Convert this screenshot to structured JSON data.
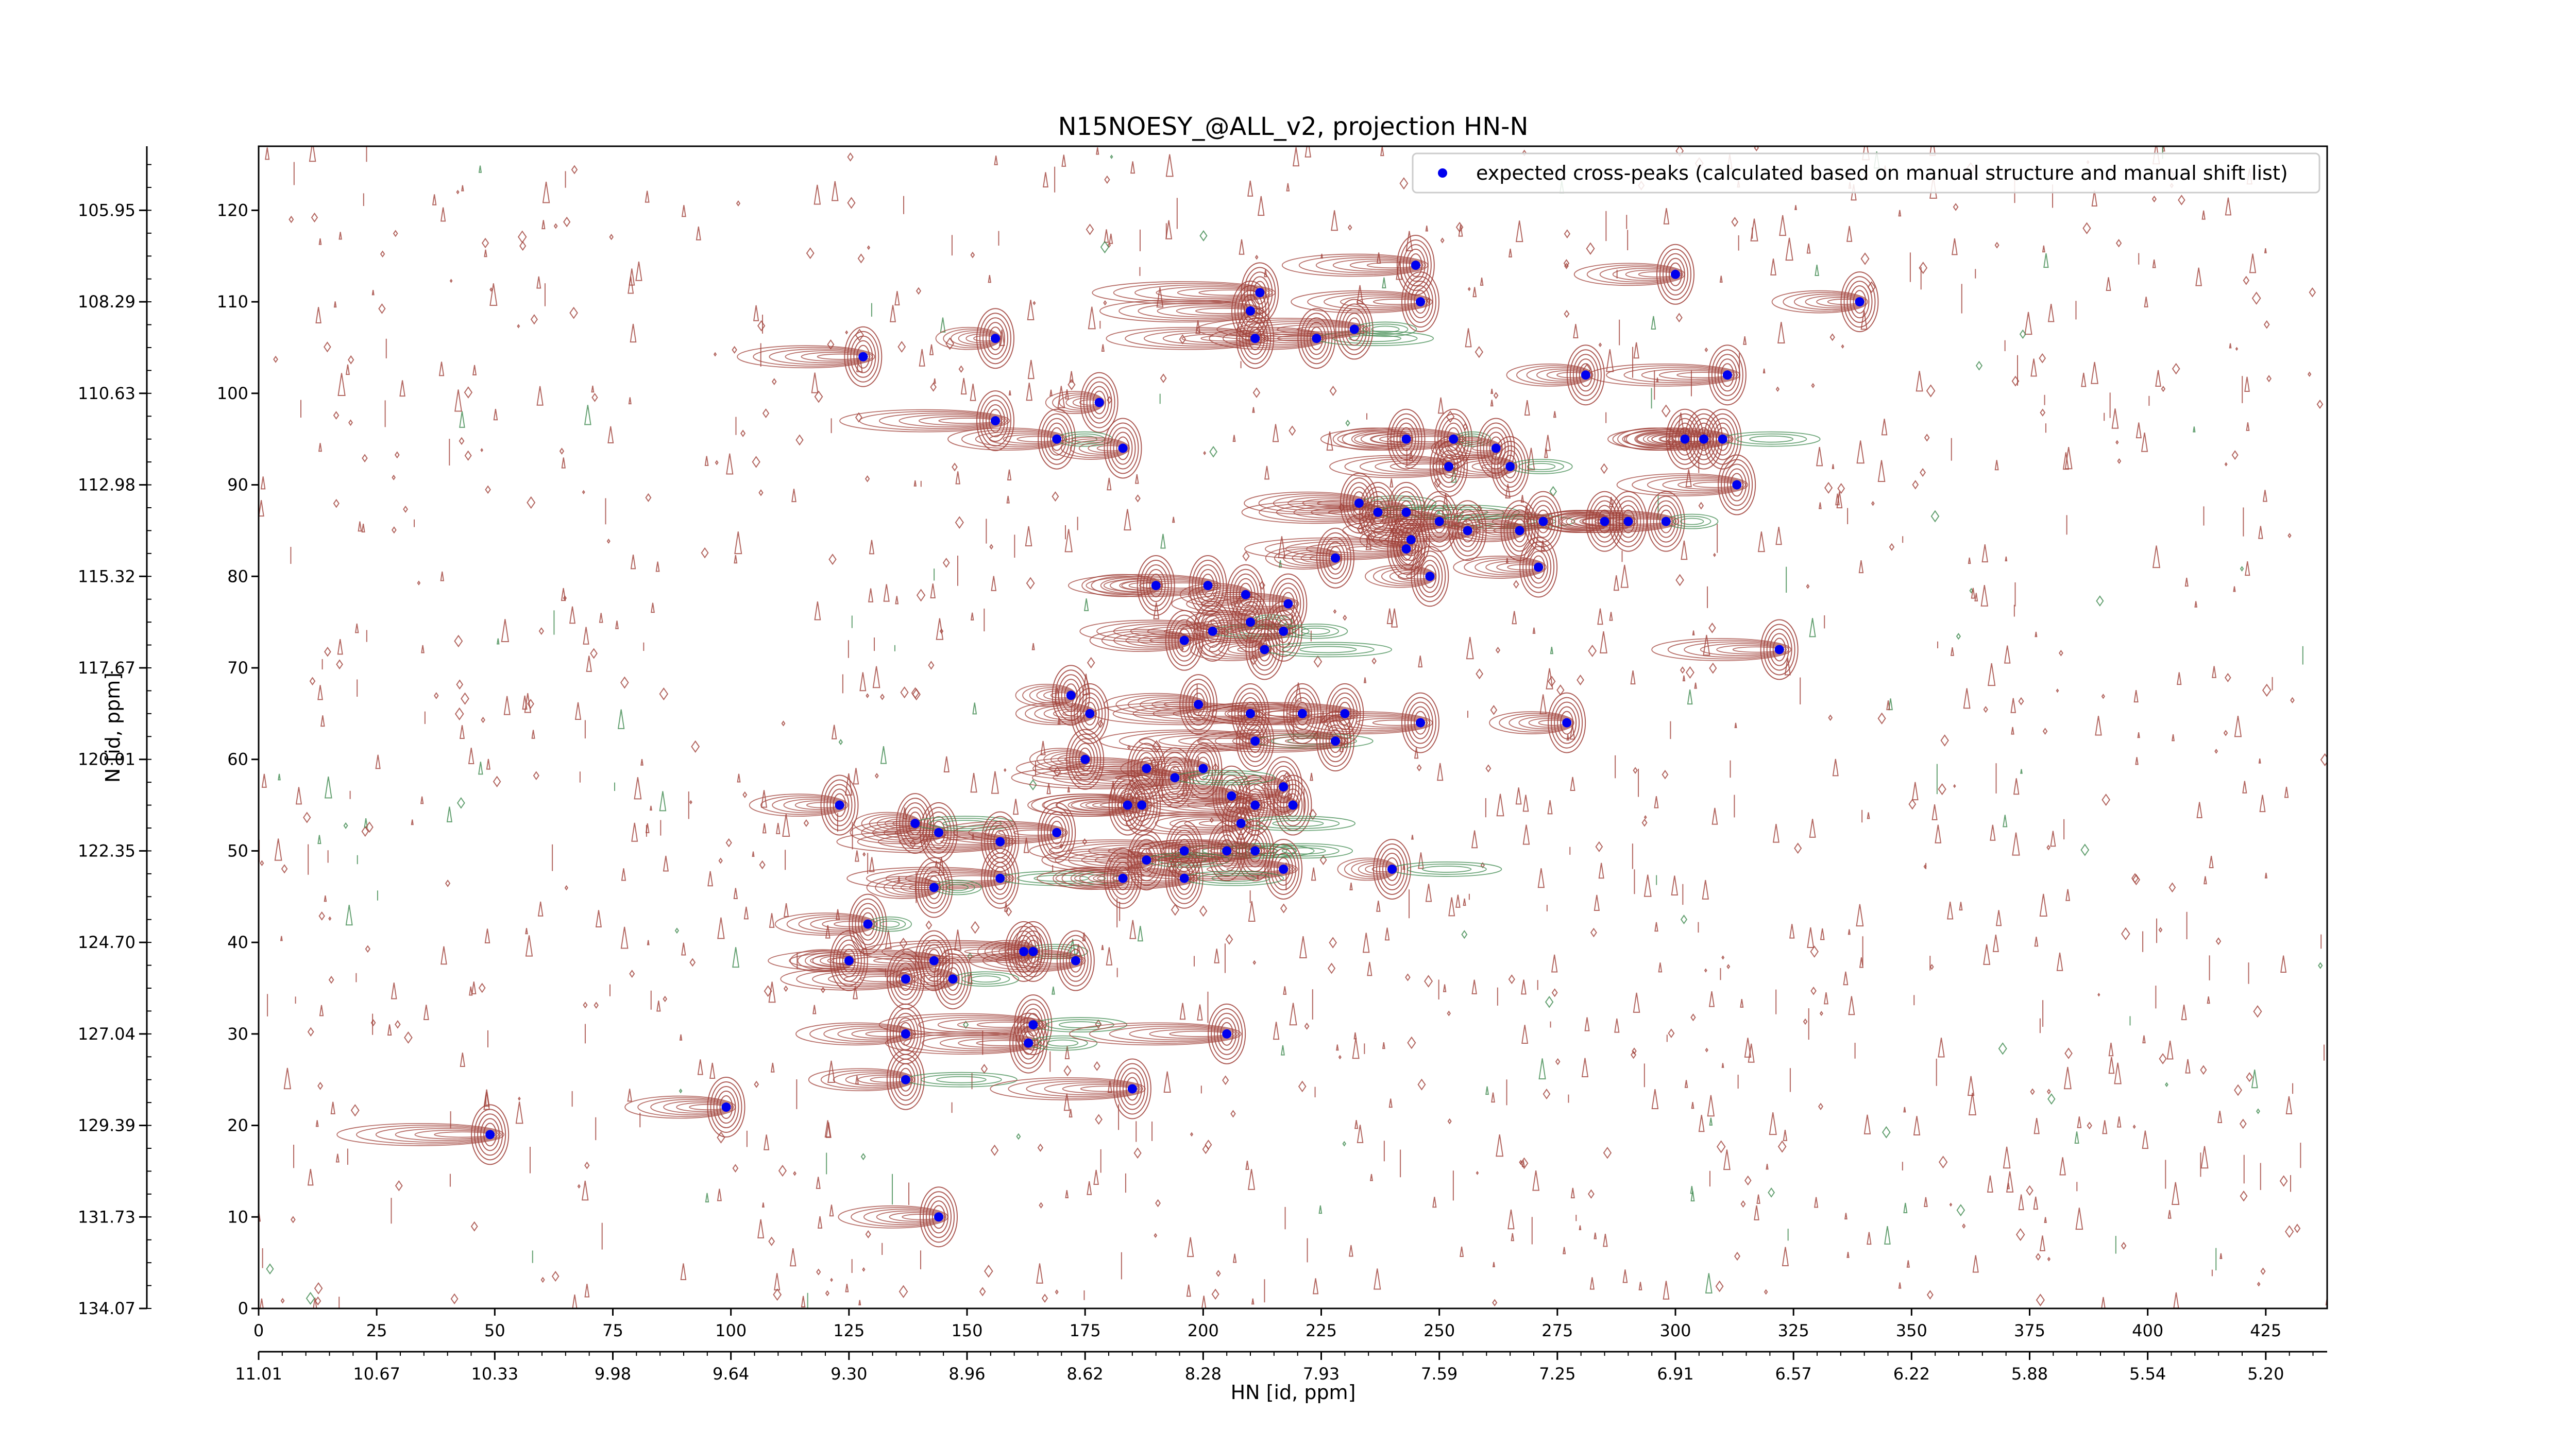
{
  "chart_data": {
    "type": "scatter",
    "title": "N15NOESY_@ALL_v2, projection HN-N",
    "xlabel": "HN [id, ppm]",
    "ylabel": "N [id, ppm]",
    "x_range": [
      0,
      438
    ],
    "y_range": [
      0,
      127
    ],
    "x_ticks_index": [
      "0",
      "25",
      "50",
      "75",
      "100",
      "125",
      "150",
      "175",
      "200",
      "225",
      "250",
      "275",
      "300",
      "325",
      "350",
      "375",
      "400",
      "425"
    ],
    "x_ticks_ppm": [
      "11.01",
      "10.67",
      "10.33",
      "9.98",
      "9.64",
      "9.30",
      "8.96",
      "8.62",
      "8.28",
      "7.93",
      "7.59",
      "7.25",
      "6.91",
      "6.57",
      "6.22",
      "5.88",
      "5.54",
      "5.20"
    ],
    "y_ticks_index": [
      "0",
      "10",
      "20",
      "30",
      "40",
      "50",
      "60",
      "70",
      "80",
      "90",
      "100",
      "110",
      "120"
    ],
    "y_ticks_ppm": [
      "134.07",
      "131.73",
      "129.39",
      "127.04",
      "124.70",
      "122.35",
      "120.01",
      "117.67",
      "115.32",
      "112.98",
      "110.63",
      "108.29",
      "105.95"
    ],
    "legend": {
      "label": "expected cross-peaks (calculated based on manual structure and manual shift list)",
      "position": "top-right"
    },
    "colors": {
      "positive_contour": "#a0413a",
      "negative_contour": "#3f8a4f",
      "marker": "#0000ee"
    },
    "series": [
      {
        "name": "expected cross-peaks (calculated based on manual structure and manual shift list)",
        "points": [
          [
            245,
            114
          ],
          [
            246,
            110
          ],
          [
            300,
            113
          ],
          [
            339,
            110
          ],
          [
            210,
            109
          ],
          [
            212,
            111
          ],
          [
            211,
            106
          ],
          [
            224,
            106
          ],
          [
            232,
            107
          ],
          [
            156,
            106
          ],
          [
            128,
            104
          ],
          [
            281,
            102
          ],
          [
            311,
            102
          ],
          [
            156,
            97
          ],
          [
            178,
            99
          ],
          [
            169,
            95
          ],
          [
            183,
            94
          ],
          [
            243,
            95
          ],
          [
            253,
            95
          ],
          [
            262,
            94
          ],
          [
            265,
            92
          ],
          [
            252,
            92
          ],
          [
            302,
            95
          ],
          [
            306,
            95
          ],
          [
            310,
            95
          ],
          [
            313,
            90
          ],
          [
            233,
            88
          ],
          [
            237,
            87
          ],
          [
            243,
            87
          ],
          [
            250,
            86
          ],
          [
            256,
            85
          ],
          [
            267,
            85
          ],
          [
            272,
            86
          ],
          [
            285,
            86
          ],
          [
            290,
            86
          ],
          [
            298,
            86
          ],
          [
            244,
            84
          ],
          [
            243,
            83
          ],
          [
            228,
            82
          ],
          [
            248,
            80
          ],
          [
            271,
            81
          ],
          [
            190,
            79
          ],
          [
            201,
            79
          ],
          [
            209,
            78
          ],
          [
            218,
            77
          ],
          [
            196,
            73
          ],
          [
            202,
            74
          ],
          [
            210,
            75
          ],
          [
            217,
            74
          ],
          [
            213,
            72
          ],
          [
            322,
            72
          ],
          [
            172,
            67
          ],
          [
            176,
            65
          ],
          [
            199,
            66
          ],
          [
            210,
            65
          ],
          [
            221,
            65
          ],
          [
            230,
            65
          ],
          [
            246,
            64
          ],
          [
            277,
            64
          ],
          [
            211,
            62
          ],
          [
            228,
            62
          ],
          [
            175,
            60
          ],
          [
            188,
            59
          ],
          [
            200,
            59
          ],
          [
            206,
            56
          ],
          [
            217,
            57
          ],
          [
            211,
            55
          ],
          [
            219,
            55
          ],
          [
            184,
            55
          ],
          [
            187,
            55
          ],
          [
            194,
            58
          ],
          [
            208,
            53
          ],
          [
            123,
            55
          ],
          [
            144,
            52
          ],
          [
            139,
            53
          ],
          [
            169,
            52
          ],
          [
            157,
            51
          ],
          [
            196,
            50
          ],
          [
            205,
            50
          ],
          [
            211,
            50
          ],
          [
            188,
            49
          ],
          [
            217,
            48
          ],
          [
            240,
            48
          ],
          [
            157,
            47
          ],
          [
            196,
            47
          ],
          [
            183,
            47
          ],
          [
            143,
            46
          ],
          [
            129,
            42
          ],
          [
            125,
            38
          ],
          [
            143,
            38
          ],
          [
            162,
            39
          ],
          [
            164,
            39
          ],
          [
            173,
            38
          ],
          [
            137,
            36
          ],
          [
            147,
            36
          ],
          [
            164,
            31
          ],
          [
            163,
            29
          ],
          [
            137,
            30
          ],
          [
            205,
            30
          ],
          [
            137,
            25
          ],
          [
            185,
            24
          ],
          [
            99,
            22
          ],
          [
            49,
            19
          ],
          [
            144,
            10
          ]
        ]
      }
    ]
  }
}
